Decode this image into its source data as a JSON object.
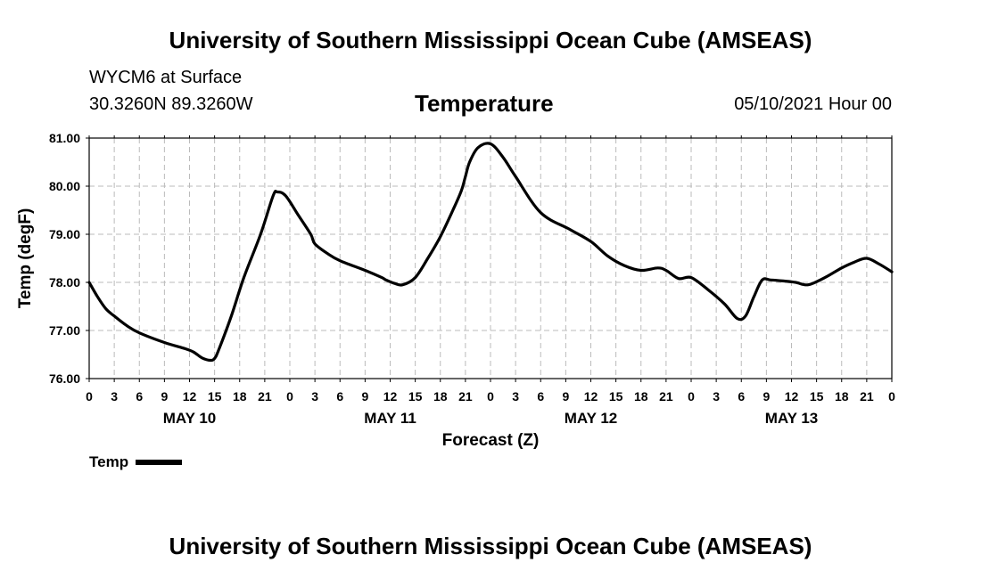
{
  "header": {
    "title": "University of Southern Mississippi Ocean Cube (AMSEAS)",
    "station": "WYCM6 at Surface",
    "coords": "30.3260N  89.3260W",
    "date": "05/10/2021 Hour 00"
  },
  "footer": {
    "title": "University of Southern Mississippi Ocean Cube (AMSEAS)"
  },
  "legend": {
    "label": "Temp",
    "color": "#000000"
  },
  "chart_data": {
    "type": "line",
    "title": "Temperature",
    "xlabel": "Forecast (Z)",
    "ylabel": "Temp (degF)",
    "ylim": [
      76.0,
      81.0
    ],
    "xlim_hours": [
      0,
      96
    ],
    "grid": true,
    "y_ticks": [
      "76.00",
      "77.00",
      "78.00",
      "79.00",
      "80.00",
      "81.00"
    ],
    "x_ticks": [
      "0",
      "3",
      "6",
      "9",
      "12",
      "15",
      "18",
      "21",
      "0",
      "3",
      "6",
      "9",
      "12",
      "15",
      "18",
      "21",
      "0",
      "3",
      "6",
      "9",
      "12",
      "15",
      "18",
      "21",
      "0",
      "3",
      "6",
      "9",
      "12",
      "15",
      "18",
      "21",
      "0"
    ],
    "date_labels": [
      {
        "label": "MAY 10",
        "hour": 12
      },
      {
        "label": "MAY 11",
        "hour": 36
      },
      {
        "label": "MAY 12",
        "hour": 60
      },
      {
        "label": "MAY 13",
        "hour": 84
      }
    ],
    "series": [
      {
        "name": "Temp",
        "x_hours": [
          0,
          1,
          2,
          3,
          4.5,
          6,
          9,
          11.5,
          12.5,
          13.5,
          14.5,
          15,
          15.5,
          17,
          18.5,
          20.5,
          22,
          22.5,
          23.5,
          25,
          26.5,
          27,
          28.5,
          30,
          33,
          35,
          35.5,
          36.5,
          37.5,
          39,
          40.5,
          42,
          43.5,
          44.5,
          45,
          45.5,
          46.5,
          48,
          49.5,
          51,
          54,
          57.5,
          60,
          62,
          64,
          66,
          68,
          69,
          70.5,
          72,
          74,
          76,
          77.5,
          78.5,
          79.5,
          80.5,
          81.5,
          83,
          84.5,
          86,
          88,
          90,
          91.5,
          93,
          94.5,
          96
        ],
        "values": [
          78.0,
          77.7,
          77.45,
          77.3,
          77.1,
          76.95,
          76.75,
          76.62,
          76.55,
          76.43,
          76.38,
          76.42,
          76.6,
          77.3,
          78.1,
          79.0,
          79.8,
          79.88,
          79.8,
          79.4,
          79.0,
          78.8,
          78.6,
          78.45,
          78.25,
          78.1,
          78.05,
          77.98,
          77.95,
          78.1,
          78.5,
          78.95,
          79.5,
          79.9,
          80.2,
          80.5,
          80.8,
          80.88,
          80.6,
          80.2,
          79.45,
          79.1,
          78.85,
          78.55,
          78.35,
          78.25,
          78.3,
          78.25,
          78.08,
          78.1,
          77.85,
          77.55,
          77.25,
          77.3,
          77.7,
          78.05,
          78.05,
          78.03,
          78.0,
          77.95,
          78.1,
          78.3,
          78.42,
          78.5,
          78.38,
          78.22
        ]
      }
    ]
  }
}
